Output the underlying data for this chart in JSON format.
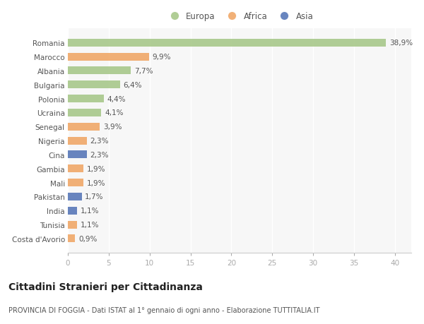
{
  "countries": [
    "Romania",
    "Marocco",
    "Albania",
    "Bulgaria",
    "Polonia",
    "Ucraina",
    "Senegal",
    "Nigeria",
    "Cina",
    "Gambia",
    "Mali",
    "Pakistan",
    "India",
    "Tunisia",
    "Costa d'Avorio"
  ],
  "values": [
    38.9,
    9.9,
    7.7,
    6.4,
    4.4,
    4.1,
    3.9,
    2.3,
    2.3,
    1.9,
    1.9,
    1.7,
    1.1,
    1.1,
    0.9
  ],
  "labels": [
    "38,9%",
    "9,9%",
    "7,7%",
    "6,4%",
    "4,4%",
    "4,1%",
    "3,9%",
    "2,3%",
    "2,3%",
    "1,9%",
    "1,9%",
    "1,7%",
    "1,1%",
    "1,1%",
    "0,9%"
  ],
  "continents": [
    "Europa",
    "Africa",
    "Europa",
    "Europa",
    "Europa",
    "Europa",
    "Africa",
    "Africa",
    "Asia",
    "Africa",
    "Africa",
    "Asia",
    "Asia",
    "Africa",
    "Africa"
  ],
  "colors": {
    "Europa": "#a8c88a",
    "Africa": "#f0a868",
    "Asia": "#5878b8"
  },
  "legend_labels": [
    "Europa",
    "Africa",
    "Asia"
  ],
  "legend_colors": [
    "#a8c88a",
    "#f0a868",
    "#5878b8"
  ],
  "xlim": [
    0,
    42
  ],
  "xticks": [
    0,
    5,
    10,
    15,
    20,
    25,
    30,
    35,
    40
  ],
  "title": "Cittadini Stranieri per Cittadinanza",
  "subtitle": "PROVINCIA DI FOGGIA - Dati ISTAT al 1° gennaio di ogni anno - Elaborazione TUTTITALIA.IT",
  "background_color": "#ffffff",
  "bar_height": 0.55,
  "label_fontsize": 7.5,
  "ytick_fontsize": 7.5,
  "xtick_fontsize": 7.5,
  "title_fontsize": 10,
  "subtitle_fontsize": 7,
  "legend_fontsize": 8.5
}
